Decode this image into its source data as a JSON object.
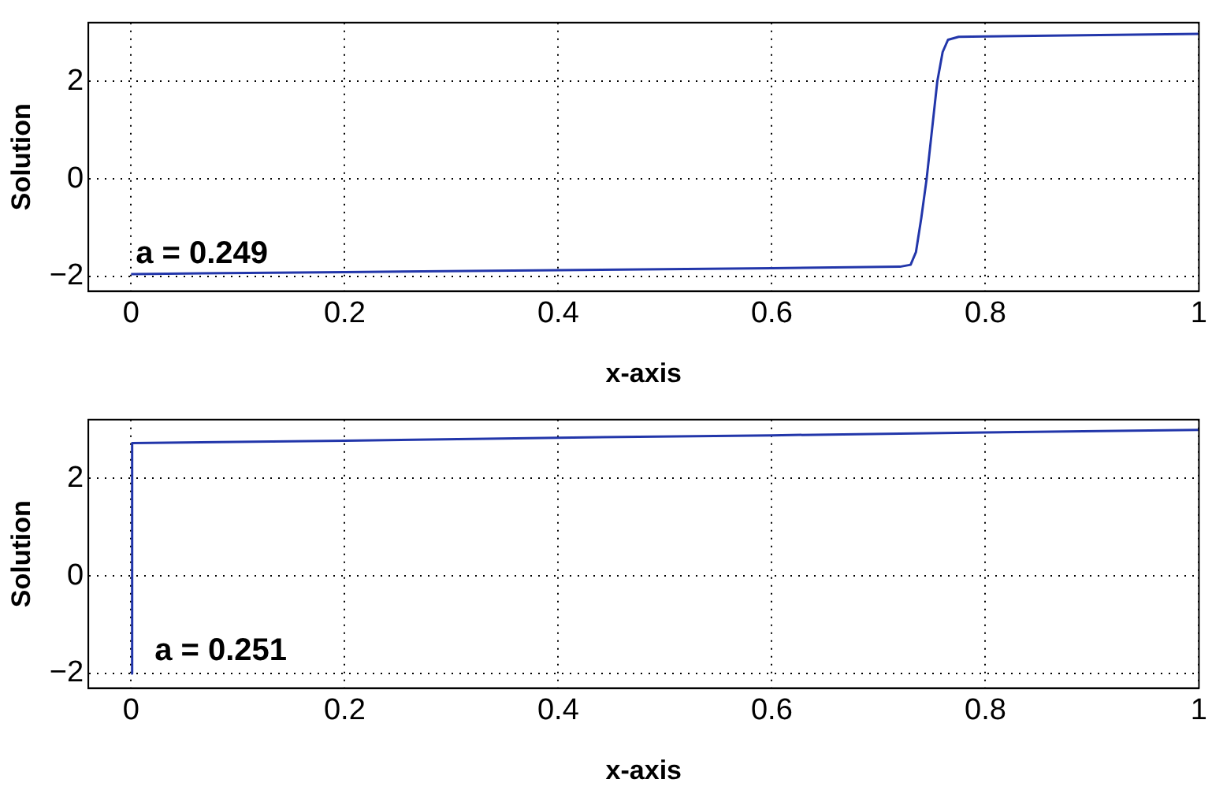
{
  "chart_data": [
    {
      "type": "line",
      "xlabel": "x-axis",
      "ylabel": "Solution",
      "annotations": [
        "a = 0.249"
      ],
      "xlim": [
        -0.04,
        1
      ],
      "ylim": [
        -2.3,
        3.2
      ],
      "xticks": [
        0,
        0.2,
        0.4,
        0.6,
        0.8,
        1
      ],
      "yticks": [
        -2,
        0,
        2
      ],
      "grid": true,
      "legend": false,
      "marker": "none",
      "line_style": "solid",
      "series": [
        {
          "color": "#2236aa",
          "x": [
            0,
            0.2,
            0.4,
            0.6,
            0.72,
            0.73,
            0.735,
            0.74,
            0.745,
            0.75,
            0.755,
            0.76,
            0.765,
            0.775,
            0.8,
            1
          ],
          "values": [
            -1.95,
            -1.91,
            -1.87,
            -1.83,
            -1.8,
            -1.76,
            -1.5,
            -0.8,
            0,
            1.0,
            2.0,
            2.6,
            2.85,
            2.91,
            2.92,
            2.97
          ]
        }
      ]
    },
    {
      "type": "line",
      "xlabel": "x-axis",
      "ylabel": "Solution",
      "annotations": [
        "a = 0.251"
      ],
      "xlim": [
        -0.04,
        1
      ],
      "ylim": [
        -2.3,
        3.2
      ],
      "xticks": [
        0,
        0.2,
        0.4,
        0.6,
        0.8,
        1
      ],
      "yticks": [
        -2,
        0,
        2
      ],
      "grid": true,
      "legend": false,
      "marker": "none",
      "line_style": "solid",
      "series": [
        {
          "color": "#2236aa",
          "x": [
            0,
            0.001,
            0.2,
            0.4,
            0.6,
            0.8,
            1
          ],
          "values": [
            -2,
            2.72,
            2.77,
            2.83,
            2.88,
            2.94,
            2.99
          ]
        }
      ]
    }
  ]
}
